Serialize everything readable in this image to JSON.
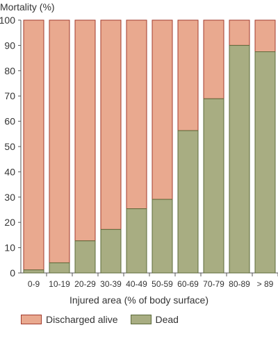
{
  "chart_data": {
    "type": "bar",
    "stacked": true,
    "ylabel": "Mortality (%)",
    "xlabel": "Injured area (% of body surface)",
    "ylim": [
      0,
      100
    ],
    "yticks": [
      0,
      10,
      20,
      30,
      40,
      50,
      60,
      70,
      80,
      90,
      100
    ],
    "categories": [
      "0-9",
      "10-19",
      "20-29",
      "30-39",
      "40-49",
      "50-59",
      "60-69",
      "70-79",
      "80-89",
      "> 89"
    ],
    "series": [
      {
        "name": "Dead",
        "color": "#a8ad82",
        "edge": "#5c6a3a",
        "values": [
          1.2,
          4,
          12.7,
          17.2,
          25.4,
          29.1,
          56.3,
          68.9,
          90,
          87.5
        ]
      },
      {
        "name": "Discharged alive",
        "color": "#e9a98f",
        "edge": "#a23b2e",
        "values": [
          98.8,
          96,
          87.3,
          82.8,
          74.6,
          70.9,
          43.7,
          31.1,
          10,
          12.5
        ]
      }
    ],
    "legend": [
      "Discharged alive",
      "Dead"
    ],
    "legend_position": "bottom-left",
    "grid": false
  }
}
